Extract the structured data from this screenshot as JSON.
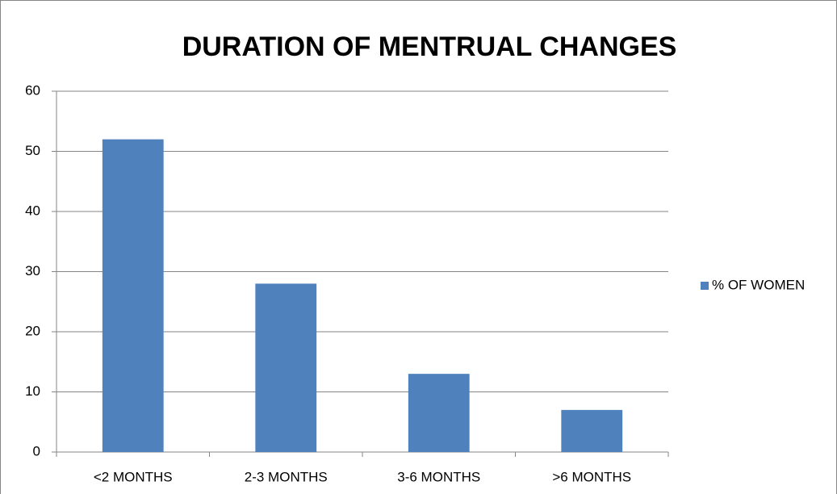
{
  "chart_data": {
    "type": "bar",
    "title": "DURATION OF MENTRUAL CHANGES",
    "categories": [
      "<2 MONTHS",
      "2-3 MONTHS",
      "3-6 MONTHS",
      ">6 MONTHS"
    ],
    "series": [
      {
        "name": "% OF WOMEN",
        "color": "#4f81bd",
        "values": [
          52,
          28,
          13,
          7
        ]
      }
    ],
    "ylim": [
      0,
      60
    ],
    "yticks": [
      0,
      10,
      20,
      30,
      40,
      50,
      60
    ],
    "grid": true,
    "legend": "right"
  }
}
